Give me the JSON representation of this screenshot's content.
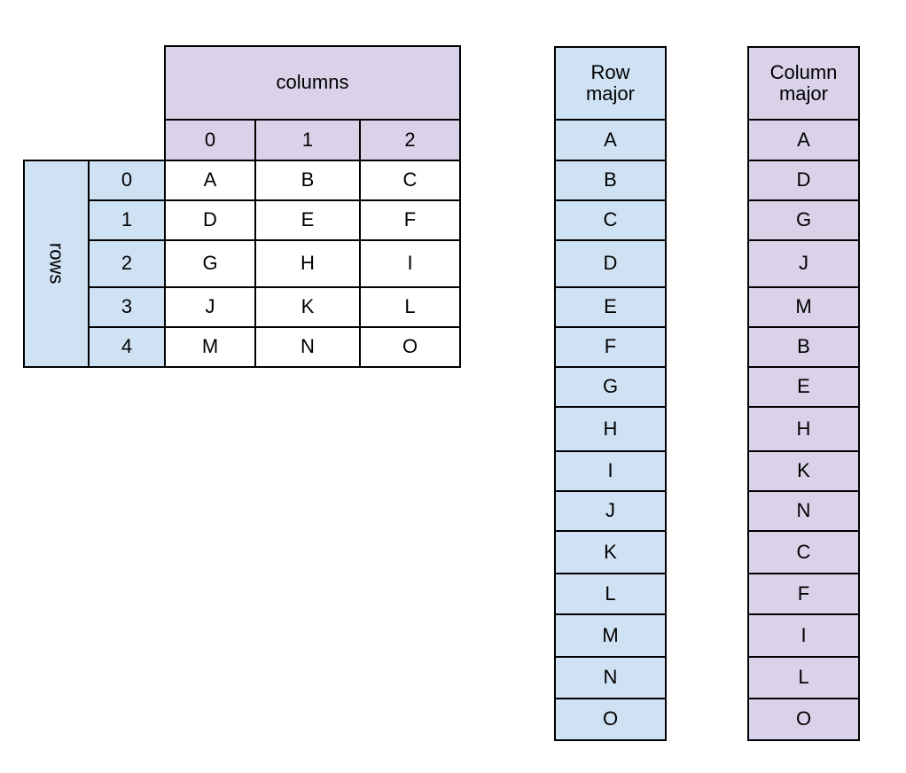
{
  "colors": {
    "purple": "#d9d2e9",
    "blue": "#cfe2f3",
    "border": "#000000"
  },
  "matrix": {
    "columns_label": "columns",
    "rows_label": "rows",
    "column_indices": [
      "0",
      "1",
      "2"
    ],
    "row_indices": [
      "0",
      "1",
      "2",
      "3",
      "4"
    ],
    "cells": [
      [
        "A",
        "B",
        "C"
      ],
      [
        "D",
        "E",
        "F"
      ],
      [
        "G",
        "H",
        "I"
      ],
      [
        "J",
        "K",
        "L"
      ],
      [
        "M",
        "N",
        "O"
      ]
    ]
  },
  "row_major": {
    "header": "Row\nmajor",
    "items": [
      "A",
      "B",
      "C",
      "D",
      "E",
      "F",
      "G",
      "H",
      "I",
      "J",
      "K",
      "L",
      "M",
      "N",
      "O"
    ]
  },
  "column_major": {
    "header": "Column\nmajor",
    "items": [
      "A",
      "D",
      "G",
      "J",
      "M",
      "B",
      "E",
      "H",
      "K",
      "N",
      "C",
      "F",
      "I",
      "L",
      "O"
    ]
  }
}
